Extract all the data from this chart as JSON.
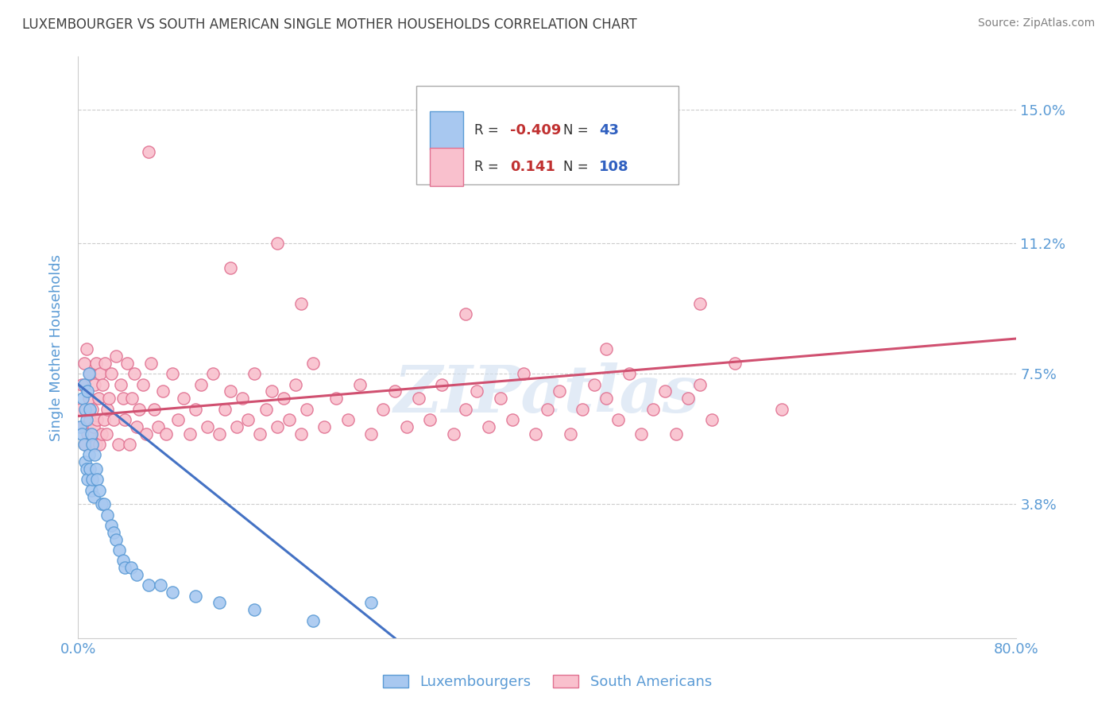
{
  "title": "LUXEMBOURGER VS SOUTH AMERICAN SINGLE MOTHER HOUSEHOLDS CORRELATION CHART",
  "source": "Source: ZipAtlas.com",
  "ylabel": "Single Mother Households",
  "xlim": [
    0.0,
    0.8
  ],
  "ylim": [
    0.0,
    0.165
  ],
  "yticks": [
    0.038,
    0.075,
    0.112,
    0.15
  ],
  "ytick_labels": [
    "3.8%",
    "7.5%",
    "11.2%",
    "15.0%"
  ],
  "xtick_labels": [
    "0.0%",
    "80.0%"
  ],
  "legend_r_blue": "-0.409",
  "legend_n_blue": "43",
  "legend_r_pink": "0.141",
  "legend_n_pink": "108",
  "blue_color": "#a8c8f0",
  "pink_color": "#f9c0cd",
  "blue_edge_color": "#5b9bd5",
  "pink_edge_color": "#e07090",
  "blue_line_color": "#4472c4",
  "pink_line_color": "#d05070",
  "title_color": "#404040",
  "source_color": "#808080",
  "axis_label_color": "#5b9bd5",
  "tick_label_color": "#5b9bd5",
  "watermark_color": "#d0dff0",
  "blue_scatter_x": [
    0.002,
    0.003,
    0.004,
    0.005,
    0.005,
    0.006,
    0.006,
    0.007,
    0.007,
    0.008,
    0.008,
    0.009,
    0.009,
    0.01,
    0.01,
    0.011,
    0.011,
    0.012,
    0.012,
    0.013,
    0.014,
    0.015,
    0.016,
    0.018,
    0.02,
    0.022,
    0.025,
    0.028,
    0.03,
    0.032,
    0.035,
    0.038,
    0.04,
    0.045,
    0.05,
    0.06,
    0.07,
    0.08,
    0.1,
    0.12,
    0.15,
    0.2,
    0.25
  ],
  "blue_scatter_y": [
    0.06,
    0.058,
    0.068,
    0.055,
    0.072,
    0.05,
    0.065,
    0.048,
    0.062,
    0.045,
    0.07,
    0.052,
    0.075,
    0.048,
    0.065,
    0.042,
    0.058,
    0.045,
    0.055,
    0.04,
    0.052,
    0.048,
    0.045,
    0.042,
    0.038,
    0.038,
    0.035,
    0.032,
    0.03,
    0.028,
    0.025,
    0.022,
    0.02,
    0.02,
    0.018,
    0.015,
    0.015,
    0.013,
    0.012,
    0.01,
    0.008,
    0.005,
    0.01
  ],
  "pink_scatter_x": [
    0.002,
    0.003,
    0.004,
    0.005,
    0.006,
    0.007,
    0.008,
    0.009,
    0.01,
    0.01,
    0.011,
    0.012,
    0.013,
    0.014,
    0.015,
    0.015,
    0.016,
    0.017,
    0.018,
    0.019,
    0.02,
    0.021,
    0.022,
    0.023,
    0.024,
    0.025,
    0.026,
    0.028,
    0.03,
    0.032,
    0.034,
    0.036,
    0.038,
    0.04,
    0.042,
    0.044,
    0.046,
    0.048,
    0.05,
    0.052,
    0.055,
    0.058,
    0.062,
    0.065,
    0.068,
    0.072,
    0.075,
    0.08,
    0.085,
    0.09,
    0.095,
    0.1,
    0.105,
    0.11,
    0.115,
    0.12,
    0.125,
    0.13,
    0.135,
    0.14,
    0.145,
    0.15,
    0.155,
    0.16,
    0.165,
    0.17,
    0.175,
    0.18,
    0.185,
    0.19,
    0.195,
    0.2,
    0.21,
    0.22,
    0.23,
    0.24,
    0.25,
    0.26,
    0.27,
    0.28,
    0.29,
    0.3,
    0.31,
    0.32,
    0.33,
    0.34,
    0.35,
    0.36,
    0.37,
    0.38,
    0.39,
    0.4,
    0.41,
    0.42,
    0.43,
    0.44,
    0.45,
    0.46,
    0.47,
    0.48,
    0.49,
    0.5,
    0.51,
    0.52,
    0.53,
    0.54,
    0.56,
    0.6
  ],
  "pink_scatter_y": [
    0.065,
    0.072,
    0.06,
    0.078,
    0.055,
    0.082,
    0.058,
    0.068,
    0.062,
    0.075,
    0.058,
    0.065,
    0.06,
    0.072,
    0.055,
    0.078,
    0.062,
    0.068,
    0.055,
    0.075,
    0.058,
    0.072,
    0.062,
    0.078,
    0.058,
    0.065,
    0.068,
    0.075,
    0.062,
    0.08,
    0.055,
    0.072,
    0.068,
    0.062,
    0.078,
    0.055,
    0.068,
    0.075,
    0.06,
    0.065,
    0.072,
    0.058,
    0.078,
    0.065,
    0.06,
    0.07,
    0.058,
    0.075,
    0.062,
    0.068,
    0.058,
    0.065,
    0.072,
    0.06,
    0.075,
    0.058,
    0.065,
    0.07,
    0.06,
    0.068,
    0.062,
    0.075,
    0.058,
    0.065,
    0.07,
    0.06,
    0.068,
    0.062,
    0.072,
    0.058,
    0.065,
    0.078,
    0.06,
    0.068,
    0.062,
    0.072,
    0.058,
    0.065,
    0.07,
    0.06,
    0.068,
    0.062,
    0.072,
    0.058,
    0.065,
    0.07,
    0.06,
    0.068,
    0.062,
    0.075,
    0.058,
    0.065,
    0.07,
    0.058,
    0.065,
    0.072,
    0.068,
    0.062,
    0.075,
    0.058,
    0.065,
    0.07,
    0.058,
    0.068,
    0.072,
    0.062,
    0.078,
    0.065
  ],
  "pink_outlier_x": [
    0.06,
    0.13,
    0.17,
    0.19,
    0.33,
    0.45,
    0.53
  ],
  "pink_outlier_y": [
    0.138,
    0.105,
    0.112,
    0.095,
    0.092,
    0.082,
    0.095
  ],
  "blue_trend_x": [
    0.0,
    0.27
  ],
  "blue_trend_y": [
    0.072,
    0.0
  ],
  "pink_trend_x": [
    0.0,
    0.8
  ],
  "pink_trend_y": [
    0.063,
    0.085
  ]
}
